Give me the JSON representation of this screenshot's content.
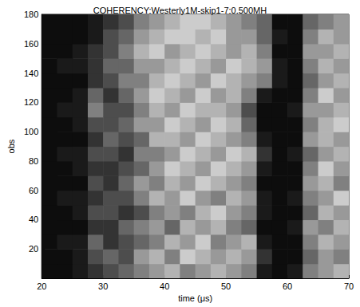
{
  "chart_data": {
    "type": "heatmap",
    "title": "COHERENCY:Westerly1M-skip1-7:0.500MH",
    "x_label": "time (μs)",
    "y_label": "obs",
    "xlim": [
      20,
      70
    ],
    "xticks": [
      20,
      30,
      40,
      50,
      60,
      70
    ],
    "ylim": [
      0,
      180
    ],
    "yticks": [
      20,
      40,
      60,
      80,
      100,
      120,
      140,
      160,
      180
    ],
    "color_range": [
      0,
      1
    ],
    "x": [
      21.25,
      23.75,
      26.25,
      28.75,
      31.25,
      33.75,
      36.25,
      38.75,
      41.25,
      43.75,
      46.25,
      48.75,
      51.25,
      53.75,
      56.25,
      58.75,
      61.25,
      63.75,
      66.25,
      68.75
    ],
    "y": [
      5,
      15,
      25,
      35,
      45,
      55,
      65,
      75,
      85,
      95,
      105,
      115,
      125,
      135,
      145,
      155,
      165,
      175
    ],
    "cells": [
      [
        0.05,
        0.05,
        0.1,
        0.2,
        0.3,
        0.4,
        0.5,
        0.6,
        0.7,
        0.5,
        0.6,
        0.7,
        0.6,
        0.5,
        0.1,
        0.05,
        0.1,
        0.5,
        0.6,
        0.7
      ],
      [
        0.05,
        0.05,
        0.1,
        0.3,
        0.4,
        0.3,
        0.6,
        0.7,
        0.5,
        0.8,
        0.7,
        0.6,
        0.7,
        0.6,
        0.2,
        0.05,
        0.05,
        0.4,
        0.6,
        0.5
      ],
      [
        0.05,
        0.1,
        0.1,
        0.4,
        0.2,
        0.3,
        0.4,
        0.5,
        0.7,
        0.6,
        0.8,
        0.5,
        0.6,
        0.7,
        0.1,
        0.05,
        0.05,
        0.5,
        0.7,
        0.6
      ],
      [
        0.05,
        0.05,
        0.05,
        0.2,
        0.2,
        0.4,
        0.5,
        0.6,
        0.4,
        0.7,
        0.6,
        0.7,
        0.5,
        0.4,
        0.05,
        0.05,
        0.1,
        0.6,
        0.5,
        0.7
      ],
      [
        0.05,
        0.05,
        0.1,
        0.3,
        0.3,
        0.2,
        0.3,
        0.5,
        0.6,
        0.5,
        0.7,
        0.8,
        0.6,
        0.5,
        0.1,
        0.05,
        0.05,
        0.4,
        0.7,
        0.6
      ],
      [
        0.05,
        0.1,
        0.1,
        0.2,
        0.3,
        0.3,
        0.5,
        0.7,
        0.6,
        0.8,
        0.6,
        0.5,
        0.7,
        0.6,
        0.1,
        0.05,
        0.1,
        0.5,
        0.6,
        0.8
      ],
      [
        0.05,
        0.05,
        0.05,
        0.3,
        0.2,
        0.4,
        0.6,
        0.5,
        0.7,
        0.6,
        0.8,
        0.7,
        0.6,
        0.5,
        0.05,
        0.05,
        0.05,
        0.6,
        0.7,
        0.5
      ],
      [
        0.05,
        0.05,
        0.1,
        0.2,
        0.2,
        0.3,
        0.4,
        0.6,
        0.8,
        0.7,
        0.6,
        0.8,
        0.7,
        0.6,
        0.1,
        0.05,
        0.05,
        0.5,
        0.8,
        0.6
      ],
      [
        0.05,
        0.1,
        0.1,
        0.3,
        0.3,
        0.2,
        0.5,
        0.5,
        0.6,
        0.8,
        0.7,
        0.6,
        0.8,
        0.7,
        0.2,
        0.05,
        0.1,
        0.4,
        0.6,
        0.7
      ],
      [
        0.05,
        0.05,
        0.05,
        0.2,
        0.4,
        0.3,
        0.4,
        0.7,
        0.7,
        0.6,
        0.8,
        0.7,
        0.6,
        0.5,
        0.1,
        0.05,
        0.05,
        0.6,
        0.7,
        0.6
      ],
      [
        0.05,
        0.05,
        0.1,
        0.3,
        0.3,
        0.4,
        0.6,
        0.6,
        0.8,
        0.7,
        0.6,
        0.8,
        0.7,
        0.4,
        0.05,
        0.05,
        0.05,
        0.5,
        0.7,
        0.8
      ],
      [
        0.05,
        0.1,
        0.1,
        0.5,
        0.3,
        0.3,
        0.5,
        0.7,
        0.6,
        0.8,
        0.7,
        0.7,
        0.6,
        0.3,
        0.05,
        0.05,
        0.1,
        0.6,
        0.6,
        0.7
      ],
      [
        0.05,
        0.05,
        0.1,
        0.4,
        0.2,
        0.4,
        0.6,
        0.8,
        0.7,
        0.6,
        0.8,
        0.6,
        0.7,
        0.5,
        0.1,
        0.05,
        0.05,
        0.5,
        0.8,
        0.6
      ],
      [
        0.05,
        0.05,
        0.05,
        0.2,
        0.3,
        0.5,
        0.5,
        0.7,
        0.8,
        0.7,
        0.6,
        0.8,
        0.7,
        0.6,
        0.5,
        0.1,
        0.05,
        0.4,
        0.6,
        0.7
      ],
      [
        0.05,
        0.1,
        0.1,
        0.2,
        0.4,
        0.4,
        0.6,
        0.6,
        0.7,
        0.8,
        0.7,
        0.6,
        0.8,
        0.7,
        0.6,
        0.1,
        0.05,
        0.5,
        0.7,
        0.6
      ],
      [
        0.05,
        0.05,
        0.1,
        0.2,
        0.3,
        0.5,
        0.7,
        0.8,
        0.6,
        0.7,
        0.8,
        0.7,
        0.6,
        0.7,
        0.5,
        0.05,
        0.05,
        0.6,
        0.6,
        0.7
      ],
      [
        0.05,
        0.05,
        0.05,
        0.1,
        0.3,
        0.4,
        0.6,
        0.7,
        0.8,
        0.8,
        0.7,
        0.8,
        0.6,
        0.6,
        0.4,
        0.1,
        0.05,
        0.5,
        0.7,
        0.6
      ],
      [
        0.05,
        0.05,
        0.05,
        0.1,
        0.2,
        0.3,
        0.5,
        0.6,
        0.7,
        0.8,
        0.8,
        0.7,
        0.6,
        0.5,
        0.4,
        0.05,
        0.05,
        0.4,
        0.5,
        0.6
      ]
    ]
  }
}
